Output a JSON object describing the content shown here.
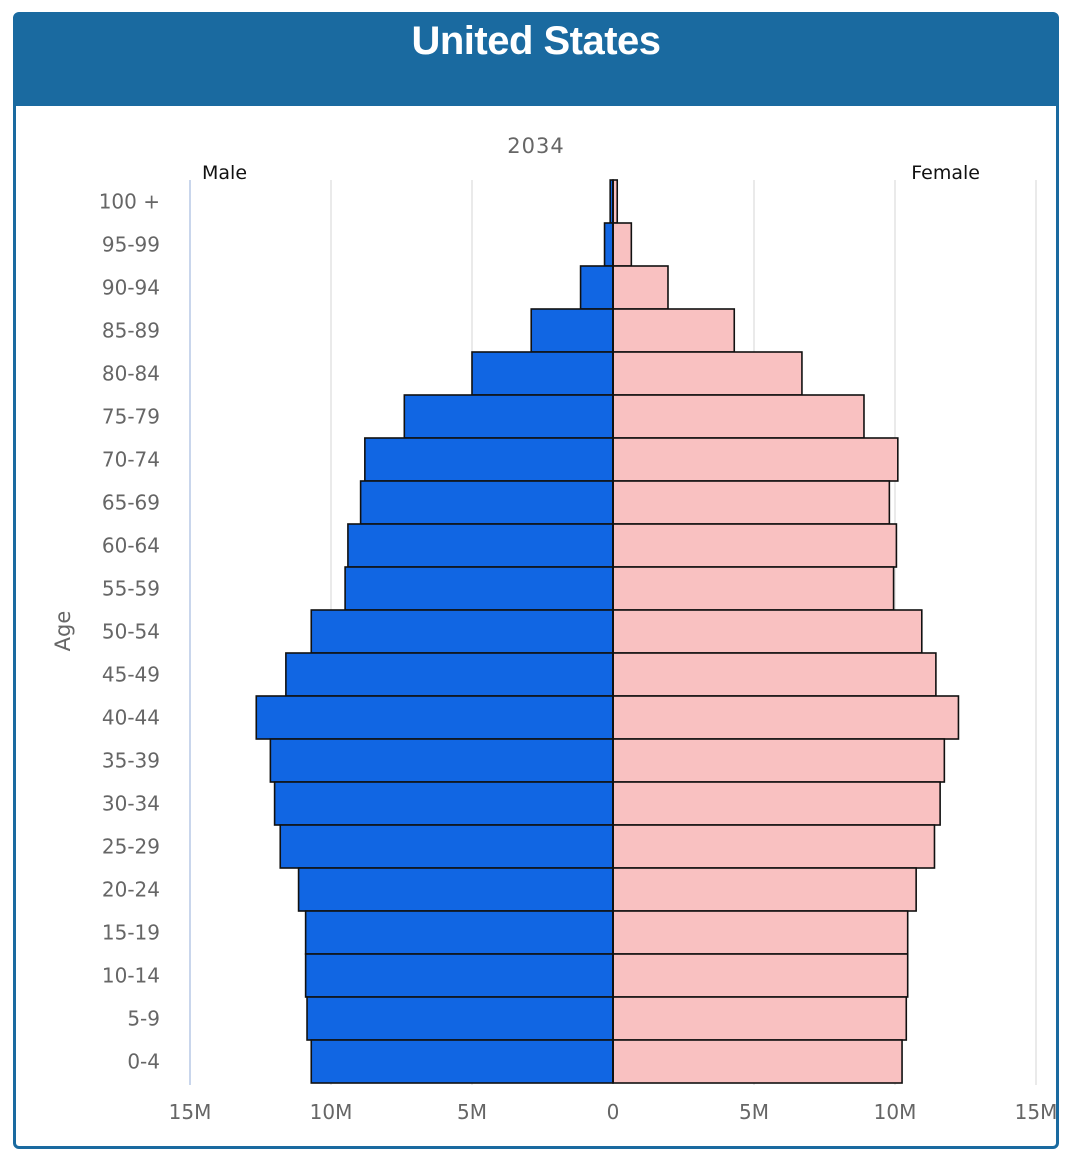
{
  "header": {
    "title": "United States"
  },
  "chart_data": {
    "type": "bar",
    "subtitle": "2034",
    "ylabel": "Age",
    "male_label": "Male",
    "female_label": "Female",
    "xlim": [
      -15,
      15
    ],
    "x_ticks": [
      {
        "value": -15,
        "label": "15M"
      },
      {
        "value": -10,
        "label": "10M"
      },
      {
        "value": -5,
        "label": "5M"
      },
      {
        "value": 0,
        "label": "0"
      },
      {
        "value": 5,
        "label": "5M"
      },
      {
        "value": 10,
        "label": "10M"
      },
      {
        "value": 15,
        "label": "15M"
      }
    ],
    "grid": true,
    "categories": [
      "100 +",
      "95-99",
      "90-94",
      "85-89",
      "80-84",
      "75-79",
      "70-74",
      "65-69",
      "60-64",
      "55-59",
      "50-54",
      "45-49",
      "40-44",
      "35-39",
      "30-34",
      "25-29",
      "20-24",
      "15-19",
      "10-14",
      "5-9",
      "0-4"
    ],
    "series": [
      {
        "name": "Male",
        "color": "#1166e3",
        "values": [
          0.1,
          0.3,
          1.15,
          2.9,
          5.0,
          7.4,
          8.8,
          8.95,
          9.4,
          9.5,
          10.7,
          11.6,
          12.65,
          12.15,
          12.0,
          11.8,
          11.15,
          10.9,
          10.9,
          10.85,
          10.7
        ]
      },
      {
        "name": "Female",
        "color": "#f9c1c1",
        "values": [
          0.15,
          0.65,
          1.95,
          4.3,
          6.7,
          8.9,
          10.1,
          9.8,
          10.05,
          9.95,
          10.95,
          11.45,
          12.25,
          11.75,
          11.6,
          11.4,
          10.75,
          10.45,
          10.45,
          10.4,
          10.25
        ]
      }
    ]
  }
}
